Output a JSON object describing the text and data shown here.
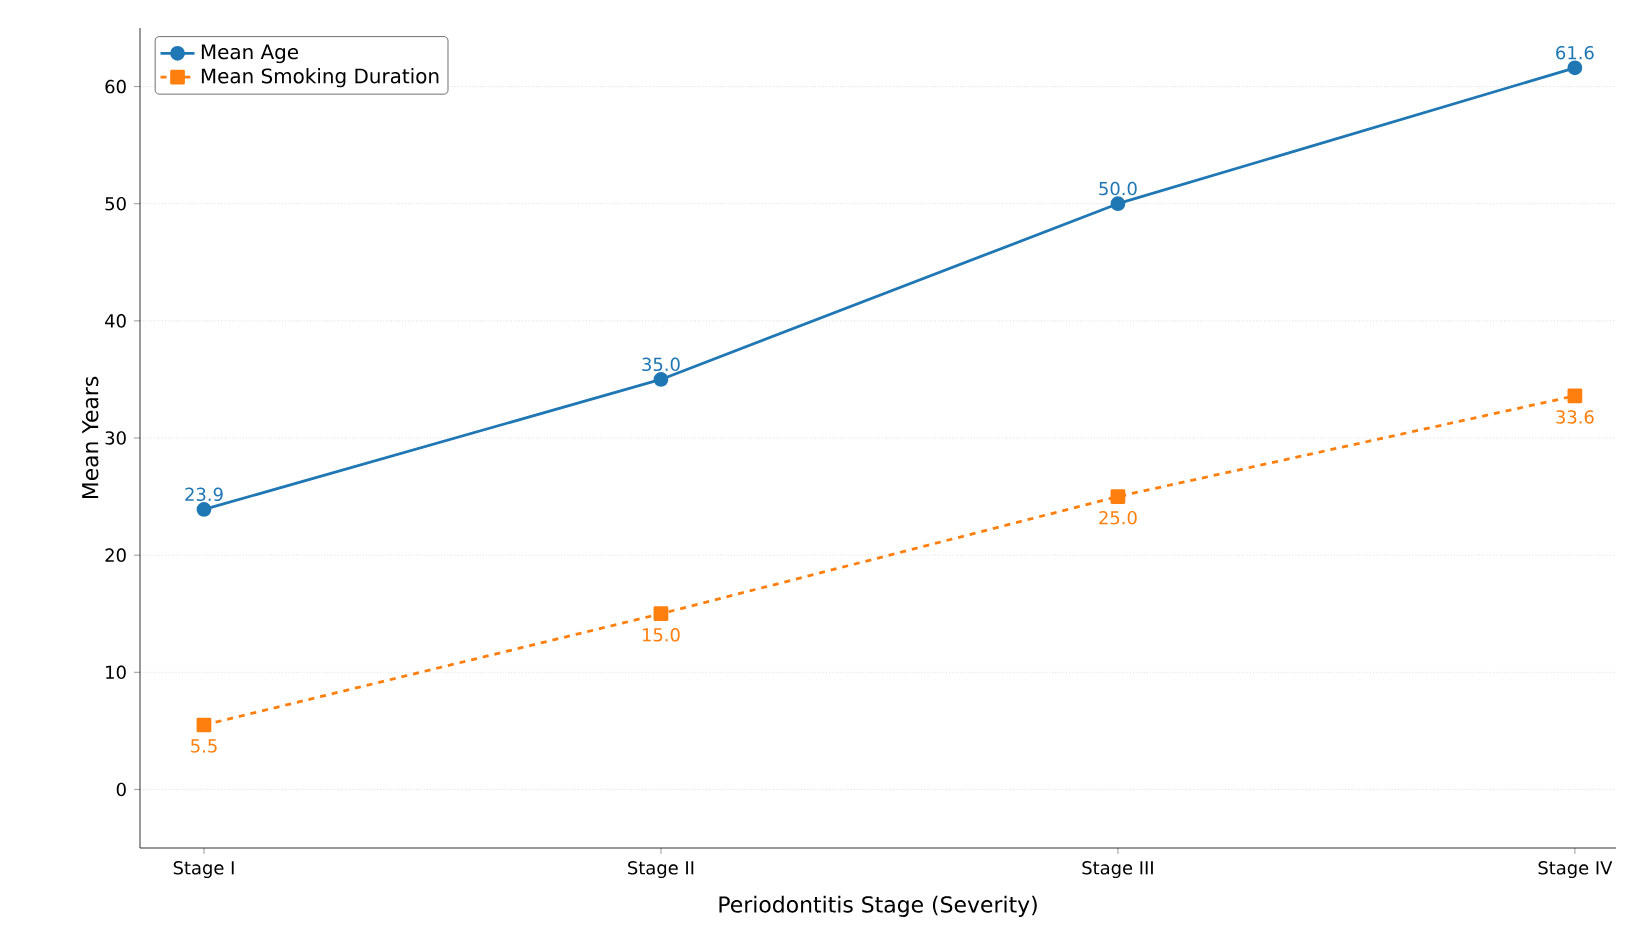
{
  "chart_data": {
    "type": "line",
    "xlabel": "Periodontitis Stage (Severity)",
    "ylabel": "Mean Years",
    "categories": [
      "Stage I",
      "Stage II",
      "Stage III",
      "Stage IV"
    ],
    "series": [
      {
        "name": "Mean Age",
        "color": "#1f77b4",
        "values": [
          23.9,
          35.0,
          50.0,
          61.6
        ],
        "value_labels": [
          "23.9",
          "35.0",
          "50.0",
          "61.6"
        ],
        "marker": "circle",
        "line_style": "solid"
      },
      {
        "name": "Mean Smoking Duration",
        "color": "#ff7f0e",
        "values": [
          5.5,
          15.0,
          25.0,
          33.6
        ],
        "value_labels": [
          "5.5",
          "15.0",
          "25.0",
          "33.6"
        ],
        "marker": "square",
        "line_style": "dashed"
      }
    ],
    "ylim": [
      -5,
      65
    ],
    "yticks": [
      0,
      10,
      20,
      30,
      40,
      50,
      60
    ],
    "grid": "y",
    "legend": "top left"
  }
}
